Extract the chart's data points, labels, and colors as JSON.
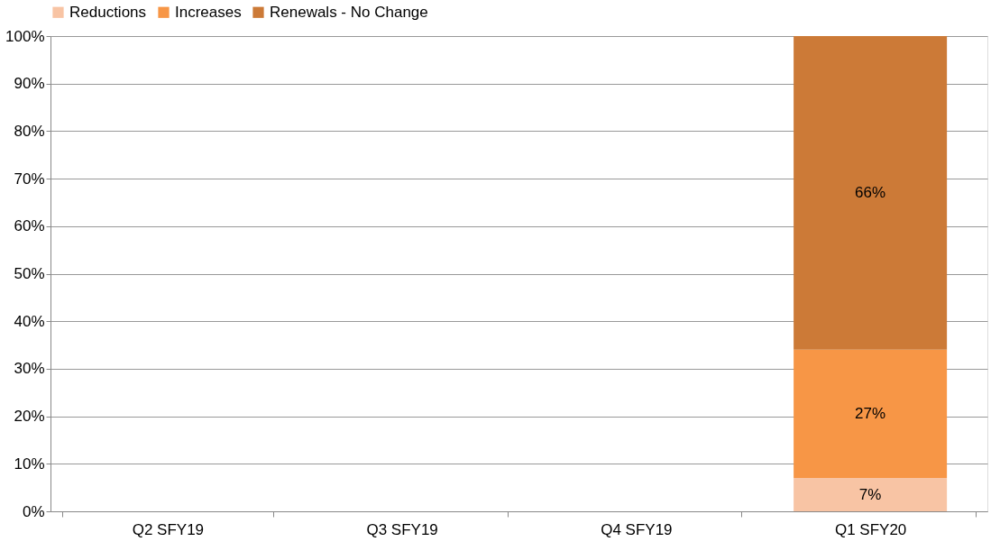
{
  "chart_data": {
    "type": "bar",
    "stacked": true,
    "categories": [
      "Q2 SFY19",
      "Q3 SFY19",
      "Q4 SFY19",
      "Q1 SFY20"
    ],
    "series": [
      {
        "name": "Reductions",
        "color": "#f8c4a4",
        "values": [
          null,
          null,
          null,
          7
        ],
        "value_labels": [
          null,
          null,
          null,
          "7%"
        ]
      },
      {
        "name": "Increases",
        "color": "#f79646",
        "values": [
          null,
          null,
          null,
          27
        ],
        "value_labels": [
          null,
          null,
          null,
          "27%"
        ]
      },
      {
        "name": "Renewals - No Change",
        "color": "#cc7a37",
        "values": [
          null,
          null,
          null,
          66
        ],
        "value_labels": [
          null,
          null,
          null,
          "66%"
        ]
      }
    ],
    "ylim": [
      0,
      100
    ],
    "yticks": [
      {
        "value": 0,
        "label": "0%"
      },
      {
        "value": 10,
        "label": "10%"
      },
      {
        "value": 20,
        "label": "20%"
      },
      {
        "value": 30,
        "label": "30%"
      },
      {
        "value": 40,
        "label": "40%"
      },
      {
        "value": 50,
        "label": "50%"
      },
      {
        "value": 60,
        "label": "60%"
      },
      {
        "value": 70,
        "label": "70%"
      },
      {
        "value": 80,
        "label": "80%"
      },
      {
        "value": 90,
        "label": "90%"
      },
      {
        "value": 100,
        "label": "100%"
      }
    ],
    "grid": "y",
    "legend": "top"
  }
}
